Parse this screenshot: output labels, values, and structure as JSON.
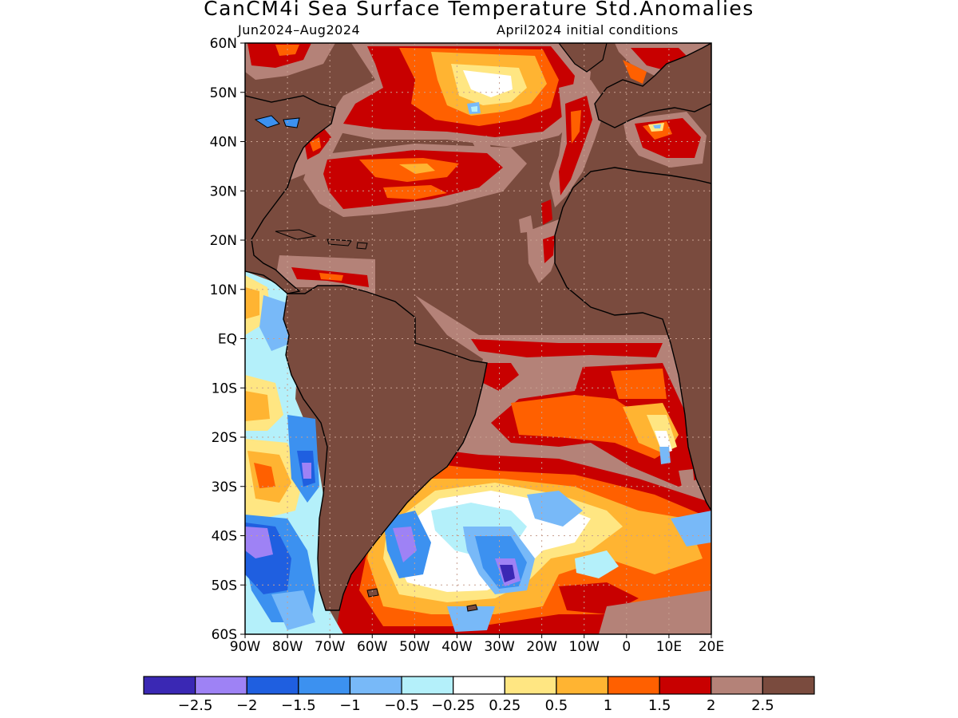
{
  "title": "CanCM4i Sea Surface Temperature Std.Anomalies",
  "period": "Jun2024–Aug2024",
  "init": "April2024 initial conditions",
  "lat_labels": [
    "60N",
    "50N",
    "40N",
    "30N",
    "20N",
    "10N",
    "EQ",
    "10S",
    "20S",
    "30S",
    "40S",
    "50S",
    "60S"
  ],
  "lon_labels": [
    "90W",
    "80W",
    "70W",
    "60W",
    "50W",
    "40W",
    "30W",
    "20W",
    "10W",
    "0",
    "10E",
    "20E"
  ],
  "colorbar": {
    "colors": [
      "#3a28b4",
      "#9e82f5",
      "#1f5fe0",
      "#3c91f0",
      "#78b9f8",
      "#b4f0fa",
      "#ffffff",
      "#ffe682",
      "#ffb432",
      "#ff6000",
      "#c80000",
      "#b48278",
      "#7a4b3e"
    ],
    "labels": [
      "−2.5",
      "−2",
      "−1.5",
      "−1",
      "−0.5",
      "−0.25",
      "0.25",
      "0.5",
      "1",
      "1.5",
      "2",
      "2.5"
    ]
  },
  "colors": {
    "land": "#7a4b3e",
    "ocean_fill": "#7a4b3e",
    "grid": "#c8a090",
    "coast": "#000000"
  }
}
